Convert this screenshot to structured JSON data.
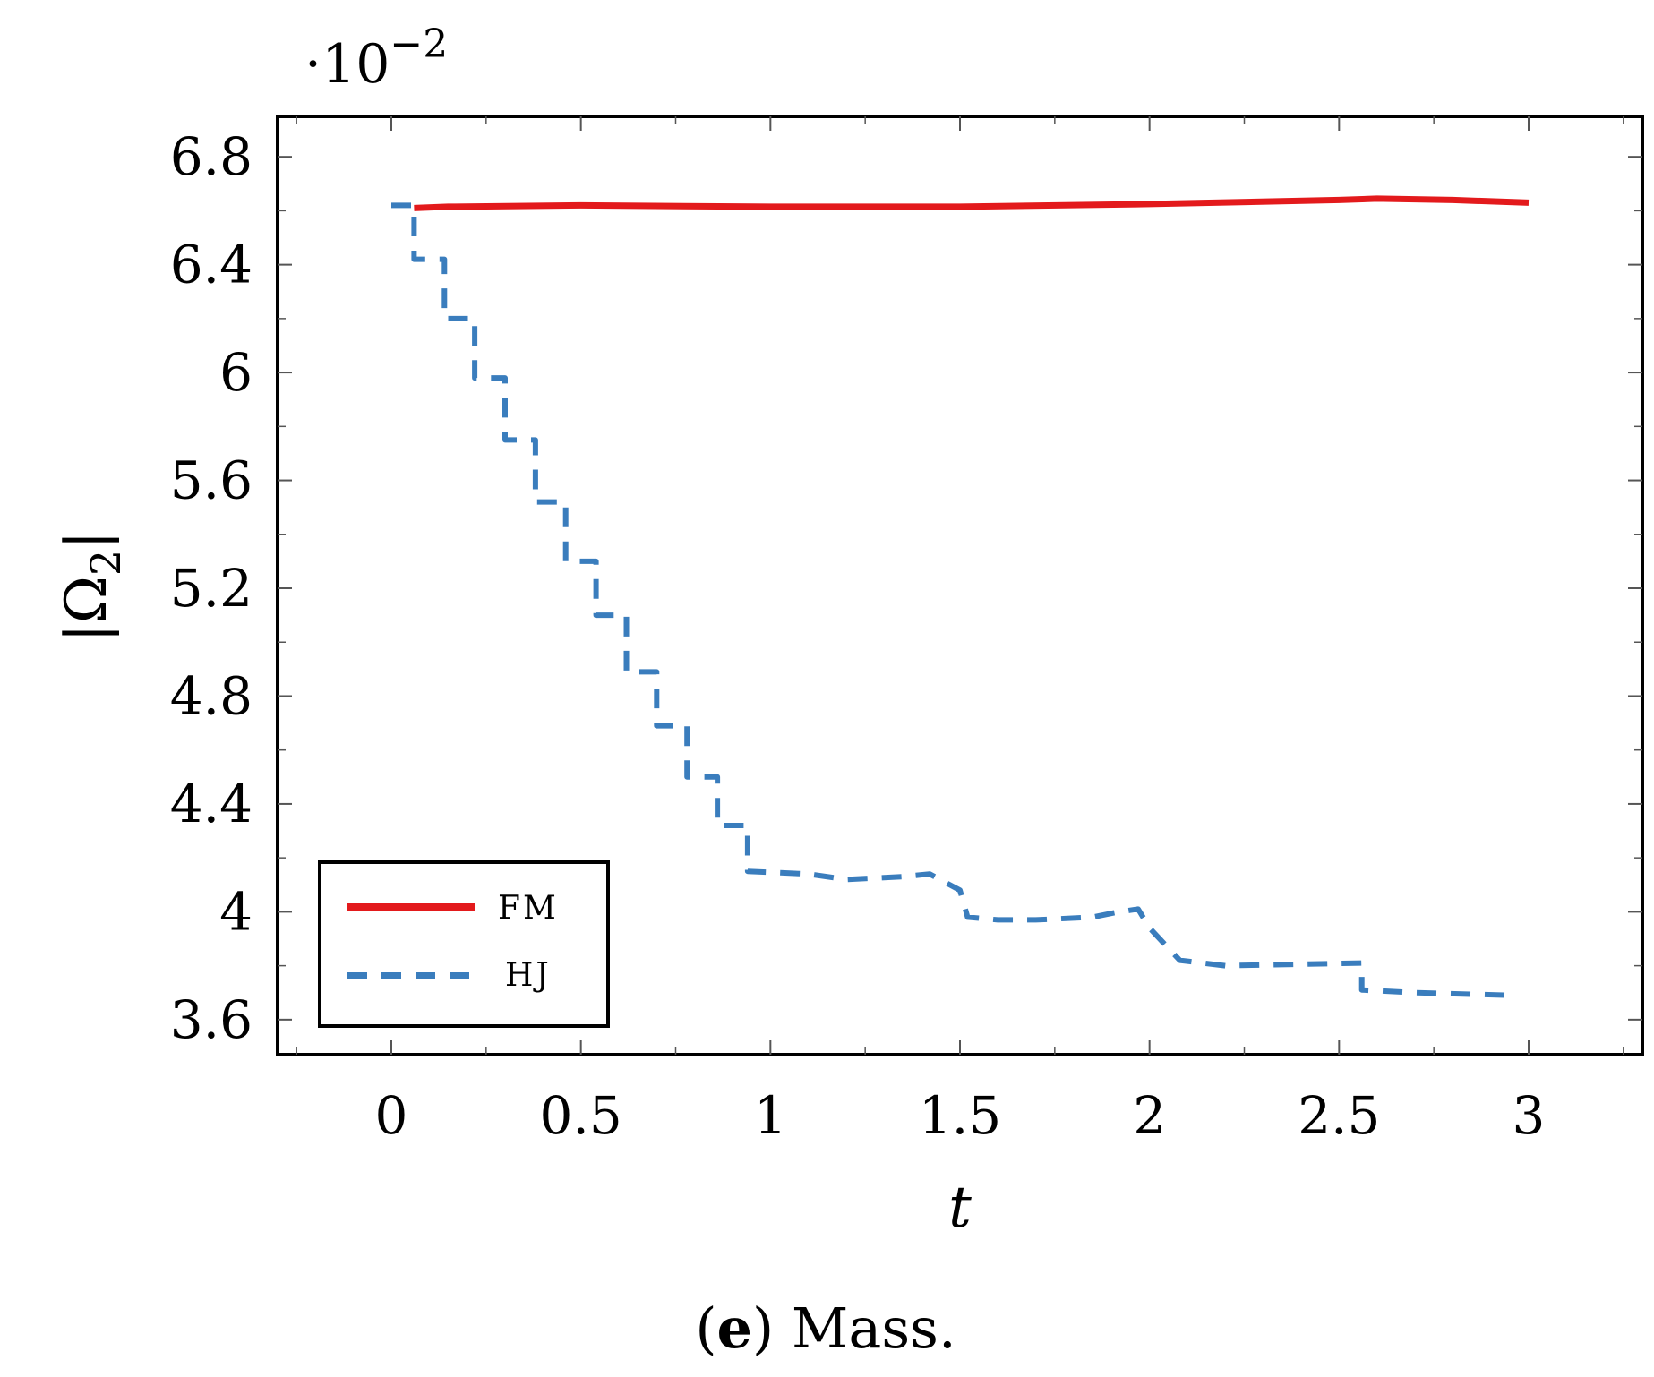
{
  "chart_data": {
    "type": "line",
    "title": "",
    "xlabel": "t",
    "ylabel": "|Ω2|",
    "ylabel_main": "|Ω",
    "ylabel_sub": "2",
    "ylabel_close": "|",
    "y_scale_prefix": "·10",
    "y_scale_exponent": "−2",
    "xlim": [
      -0.3,
      3.3
    ],
    "ylim": [
      3.47,
      6.95
    ],
    "x_ticks": [
      0,
      0.5,
      1,
      1.5,
      2,
      2.5,
      3
    ],
    "x_tick_labels": [
      "0",
      "0.5",
      "1",
      "1.5",
      "2",
      "2.5",
      "3"
    ],
    "y_ticks": [
      3.6,
      4,
      4.4,
      4.8,
      5.2,
      5.6,
      6,
      6.4,
      6.8
    ],
    "y_tick_labels": [
      "3.6",
      "4",
      "4.4",
      "4.8",
      "5.2",
      "5.6",
      "6",
      "6.4",
      "6.8"
    ],
    "legend_position": "bottom-left",
    "series": [
      {
        "name": "FM",
        "color": "#e31a1c",
        "style": "solid",
        "x": [
          0.06,
          0.15,
          0.5,
          1.0,
          1.5,
          2.0,
          2.5,
          2.6,
          2.8,
          3.0
        ],
        "values": [
          6.61,
          6.615,
          6.62,
          6.615,
          6.615,
          6.625,
          6.64,
          6.645,
          6.64,
          6.63
        ]
      },
      {
        "name": "HJ",
        "color": "#3a7dbd",
        "style": "dashed",
        "x": [
          0.0,
          0.06,
          0.06,
          0.14,
          0.14,
          0.22,
          0.22,
          0.3,
          0.3,
          0.38,
          0.38,
          0.46,
          0.46,
          0.54,
          0.54,
          0.62,
          0.62,
          0.7,
          0.7,
          0.78,
          0.78,
          0.86,
          0.86,
          0.94,
          0.94,
          1.1,
          1.2,
          1.35,
          1.42,
          1.5,
          1.52,
          1.6,
          1.7,
          1.85,
          1.92,
          1.97,
          2.0,
          2.08,
          2.2,
          2.56,
          2.56,
          2.7,
          2.95
        ],
        "values": [
          6.62,
          6.62,
          6.42,
          6.42,
          6.2,
          6.2,
          5.98,
          5.98,
          5.75,
          5.75,
          5.52,
          5.52,
          5.3,
          5.3,
          5.1,
          5.1,
          4.89,
          4.89,
          4.69,
          4.69,
          4.5,
          4.5,
          4.32,
          4.32,
          4.15,
          4.14,
          4.12,
          4.13,
          4.14,
          4.08,
          3.98,
          3.97,
          3.97,
          3.98,
          4.0,
          4.01,
          3.94,
          3.82,
          3.8,
          3.81,
          3.71,
          3.7,
          3.69
        ]
      }
    ]
  },
  "caption": {
    "open": "(",
    "letter": "e",
    "close": ")",
    "text": " Mass."
  }
}
